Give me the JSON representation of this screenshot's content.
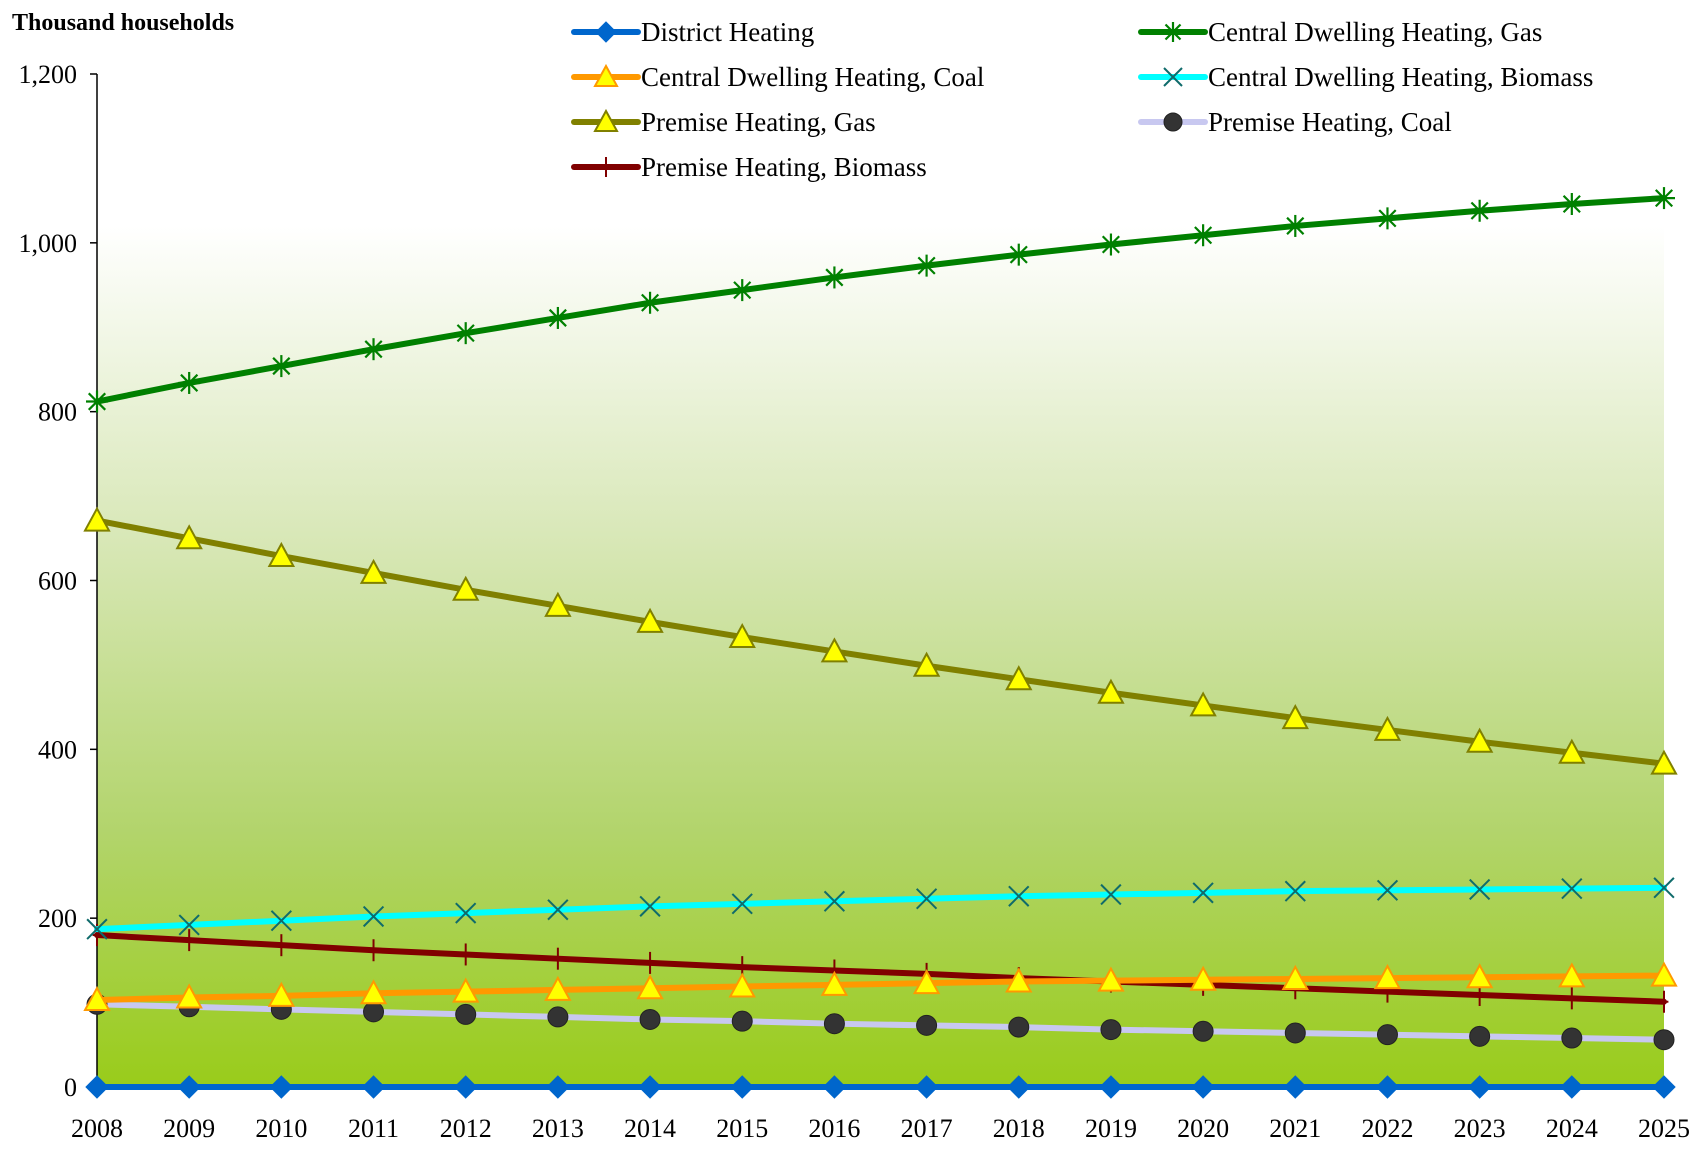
{
  "chart_data": {
    "type": "line",
    "title": "",
    "ylabel": "Thousand households",
    "xlabel": "",
    "x": [
      "2008",
      "2009",
      "2010",
      "2011",
      "2012",
      "2013",
      "2014",
      "2015",
      "2016",
      "2017",
      "2018",
      "2019",
      "2020",
      "2021",
      "2022",
      "2023",
      "2024",
      "2025"
    ],
    "ylim": [
      0,
      1200
    ],
    "yticks": [
      0,
      200,
      400,
      600,
      800,
      1000,
      1200
    ],
    "ytick_labels": [
      "0",
      "200",
      "400",
      "600",
      "800",
      "1,000",
      "1,200"
    ],
    "grid": false,
    "legend_position": "top",
    "background": "vertical gradient, white at top to yellow-green at bottom",
    "series": [
      {
        "name": "District Heating",
        "color": "#0066CC",
        "marker": "diamond",
        "values": [
          0,
          0,
          0,
          0,
          0,
          0,
          0,
          0,
          0,
          0,
          0,
          0,
          0,
          0,
          0,
          0,
          0,
          0
        ]
      },
      {
        "name": "Central Dwelling Heating, Gas",
        "color": "#008000",
        "marker": "asterisk",
        "values": [
          812,
          834,
          854,
          874,
          893,
          911,
          929,
          944,
          959,
          973,
          986,
          998,
          1009,
          1020,
          1029,
          1038,
          1046,
          1053
        ]
      },
      {
        "name": "Central Dwelling Heating, Coal",
        "color": "#FF9900",
        "marker": "triangle",
        "values": [
          103,
          106,
          108,
          111,
          113,
          115,
          117,
          119,
          121,
          123,
          125,
          126,
          127,
          128,
          129,
          130,
          131,
          132
        ]
      },
      {
        "name": "Central Dwelling Heating, Biomass",
        "color": "#00FFFF",
        "marker": "x",
        "values": [
          187,
          192,
          197,
          202,
          206,
          210,
          214,
          217,
          220,
          223,
          226,
          228,
          230,
          232,
          233,
          234,
          235,
          236
        ]
      },
      {
        "name": "Premise Heating, Gas",
        "color": "#808000",
        "marker": "triangle",
        "values": [
          671,
          650,
          629,
          609,
          589,
          570,
          551,
          533,
          516,
          499,
          483,
          467,
          452,
          437,
          423,
          409,
          396,
          383
        ]
      },
      {
        "name": "Premise Heating, Coal",
        "color": "#C8C8F0",
        "marker": "circle",
        "values": [
          98,
          95,
          92,
          89,
          86,
          83,
          80,
          78,
          75,
          73,
          71,
          68,
          66,
          64,
          62,
          60,
          58,
          56
        ]
      },
      {
        "name": "Premise Heating, Biomass",
        "color": "#800000",
        "marker": "plus",
        "values": [
          180,
          174,
          168,
          162,
          157,
          152,
          147,
          142,
          138,
          134,
          129,
          125,
          121,
          117,
          113,
          109,
          105,
          101
        ]
      }
    ]
  }
}
